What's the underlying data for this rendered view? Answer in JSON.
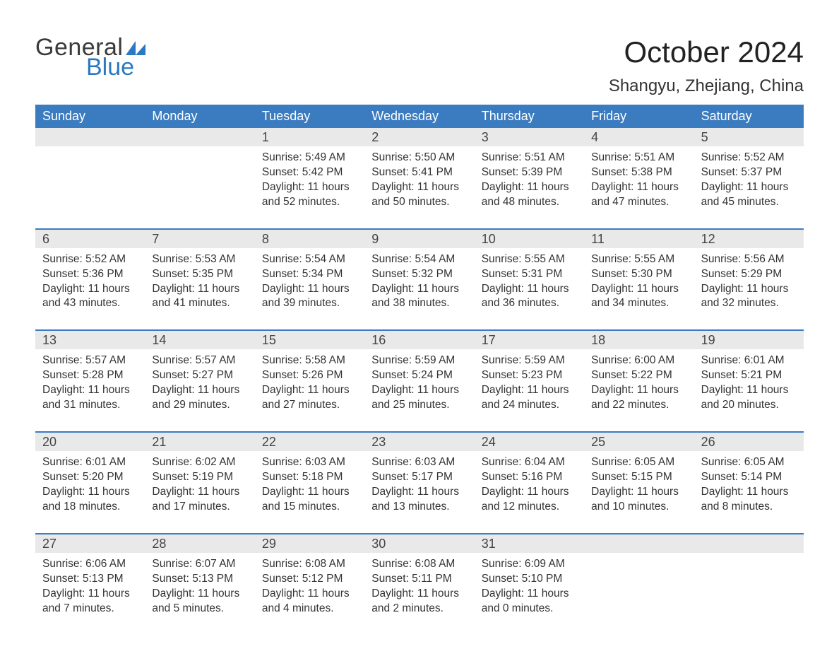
{
  "logo": {
    "text_general": "General",
    "text_blue": "Blue",
    "mark_color": "#2b79c2",
    "text_color_general": "#3a3a3a",
    "text_color_blue": "#2b79c2"
  },
  "header": {
    "month_title": "October 2024",
    "location": "Shangyu, Zhejiang, China"
  },
  "styling": {
    "background_color": "#ffffff",
    "header_bar_color": "#3b7bbf",
    "header_text_color": "#ffffff",
    "daynum_strip_color": "#e9e9e9",
    "week_divider_color": "#3b7bbf",
    "body_text_color": "#333333",
    "month_title_fontsize": 42,
    "location_fontsize": 24,
    "weekday_fontsize": 18,
    "daynum_fontsize": 18,
    "body_fontsize": 15.5,
    "columns": 7,
    "rows": 5
  },
  "weekdays": [
    "Sunday",
    "Monday",
    "Tuesday",
    "Wednesday",
    "Thursday",
    "Friday",
    "Saturday"
  ],
  "weeks": [
    [
      {
        "empty": true
      },
      {
        "empty": true
      },
      {
        "daynum": "1",
        "sunrise": "Sunrise: 5:49 AM",
        "sunset": "Sunset: 5:42 PM",
        "daylight": "Daylight: 11 hours and 52 minutes."
      },
      {
        "daynum": "2",
        "sunrise": "Sunrise: 5:50 AM",
        "sunset": "Sunset: 5:41 PM",
        "daylight": "Daylight: 11 hours and 50 minutes."
      },
      {
        "daynum": "3",
        "sunrise": "Sunrise: 5:51 AM",
        "sunset": "Sunset: 5:39 PM",
        "daylight": "Daylight: 11 hours and 48 minutes."
      },
      {
        "daynum": "4",
        "sunrise": "Sunrise: 5:51 AM",
        "sunset": "Sunset: 5:38 PM",
        "daylight": "Daylight: 11 hours and 47 minutes."
      },
      {
        "daynum": "5",
        "sunrise": "Sunrise: 5:52 AM",
        "sunset": "Sunset: 5:37 PM",
        "daylight": "Daylight: 11 hours and 45 minutes."
      }
    ],
    [
      {
        "daynum": "6",
        "sunrise": "Sunrise: 5:52 AM",
        "sunset": "Sunset: 5:36 PM",
        "daylight": "Daylight: 11 hours and 43 minutes."
      },
      {
        "daynum": "7",
        "sunrise": "Sunrise: 5:53 AM",
        "sunset": "Sunset: 5:35 PM",
        "daylight": "Daylight: 11 hours and 41 minutes."
      },
      {
        "daynum": "8",
        "sunrise": "Sunrise: 5:54 AM",
        "sunset": "Sunset: 5:34 PM",
        "daylight": "Daylight: 11 hours and 39 minutes."
      },
      {
        "daynum": "9",
        "sunrise": "Sunrise: 5:54 AM",
        "sunset": "Sunset: 5:32 PM",
        "daylight": "Daylight: 11 hours and 38 minutes."
      },
      {
        "daynum": "10",
        "sunrise": "Sunrise: 5:55 AM",
        "sunset": "Sunset: 5:31 PM",
        "daylight": "Daylight: 11 hours and 36 minutes."
      },
      {
        "daynum": "11",
        "sunrise": "Sunrise: 5:55 AM",
        "sunset": "Sunset: 5:30 PM",
        "daylight": "Daylight: 11 hours and 34 minutes."
      },
      {
        "daynum": "12",
        "sunrise": "Sunrise: 5:56 AM",
        "sunset": "Sunset: 5:29 PM",
        "daylight": "Daylight: 11 hours and 32 minutes."
      }
    ],
    [
      {
        "daynum": "13",
        "sunrise": "Sunrise: 5:57 AM",
        "sunset": "Sunset: 5:28 PM",
        "daylight": "Daylight: 11 hours and 31 minutes."
      },
      {
        "daynum": "14",
        "sunrise": "Sunrise: 5:57 AM",
        "sunset": "Sunset: 5:27 PM",
        "daylight": "Daylight: 11 hours and 29 minutes."
      },
      {
        "daynum": "15",
        "sunrise": "Sunrise: 5:58 AM",
        "sunset": "Sunset: 5:26 PM",
        "daylight": "Daylight: 11 hours and 27 minutes."
      },
      {
        "daynum": "16",
        "sunrise": "Sunrise: 5:59 AM",
        "sunset": "Sunset: 5:24 PM",
        "daylight": "Daylight: 11 hours and 25 minutes."
      },
      {
        "daynum": "17",
        "sunrise": "Sunrise: 5:59 AM",
        "sunset": "Sunset: 5:23 PM",
        "daylight": "Daylight: 11 hours and 24 minutes."
      },
      {
        "daynum": "18",
        "sunrise": "Sunrise: 6:00 AM",
        "sunset": "Sunset: 5:22 PM",
        "daylight": "Daylight: 11 hours and 22 minutes."
      },
      {
        "daynum": "19",
        "sunrise": "Sunrise: 6:01 AM",
        "sunset": "Sunset: 5:21 PM",
        "daylight": "Daylight: 11 hours and 20 minutes."
      }
    ],
    [
      {
        "daynum": "20",
        "sunrise": "Sunrise: 6:01 AM",
        "sunset": "Sunset: 5:20 PM",
        "daylight": "Daylight: 11 hours and 18 minutes."
      },
      {
        "daynum": "21",
        "sunrise": "Sunrise: 6:02 AM",
        "sunset": "Sunset: 5:19 PM",
        "daylight": "Daylight: 11 hours and 17 minutes."
      },
      {
        "daynum": "22",
        "sunrise": "Sunrise: 6:03 AM",
        "sunset": "Sunset: 5:18 PM",
        "daylight": "Daylight: 11 hours and 15 minutes."
      },
      {
        "daynum": "23",
        "sunrise": "Sunrise: 6:03 AM",
        "sunset": "Sunset: 5:17 PM",
        "daylight": "Daylight: 11 hours and 13 minutes."
      },
      {
        "daynum": "24",
        "sunrise": "Sunrise: 6:04 AM",
        "sunset": "Sunset: 5:16 PM",
        "daylight": "Daylight: 11 hours and 12 minutes."
      },
      {
        "daynum": "25",
        "sunrise": "Sunrise: 6:05 AM",
        "sunset": "Sunset: 5:15 PM",
        "daylight": "Daylight: 11 hours and 10 minutes."
      },
      {
        "daynum": "26",
        "sunrise": "Sunrise: 6:05 AM",
        "sunset": "Sunset: 5:14 PM",
        "daylight": "Daylight: 11 hours and 8 minutes."
      }
    ],
    [
      {
        "daynum": "27",
        "sunrise": "Sunrise: 6:06 AM",
        "sunset": "Sunset: 5:13 PM",
        "daylight": "Daylight: 11 hours and 7 minutes."
      },
      {
        "daynum": "28",
        "sunrise": "Sunrise: 6:07 AM",
        "sunset": "Sunset: 5:13 PM",
        "daylight": "Daylight: 11 hours and 5 minutes."
      },
      {
        "daynum": "29",
        "sunrise": "Sunrise: 6:08 AM",
        "sunset": "Sunset: 5:12 PM",
        "daylight": "Daylight: 11 hours and 4 minutes."
      },
      {
        "daynum": "30",
        "sunrise": "Sunrise: 6:08 AM",
        "sunset": "Sunset: 5:11 PM",
        "daylight": "Daylight: 11 hours and 2 minutes."
      },
      {
        "daynum": "31",
        "sunrise": "Sunrise: 6:09 AM",
        "sunset": "Sunset: 5:10 PM",
        "daylight": "Daylight: 11 hours and 0 minutes."
      },
      {
        "empty": true
      },
      {
        "empty": true
      }
    ]
  ]
}
